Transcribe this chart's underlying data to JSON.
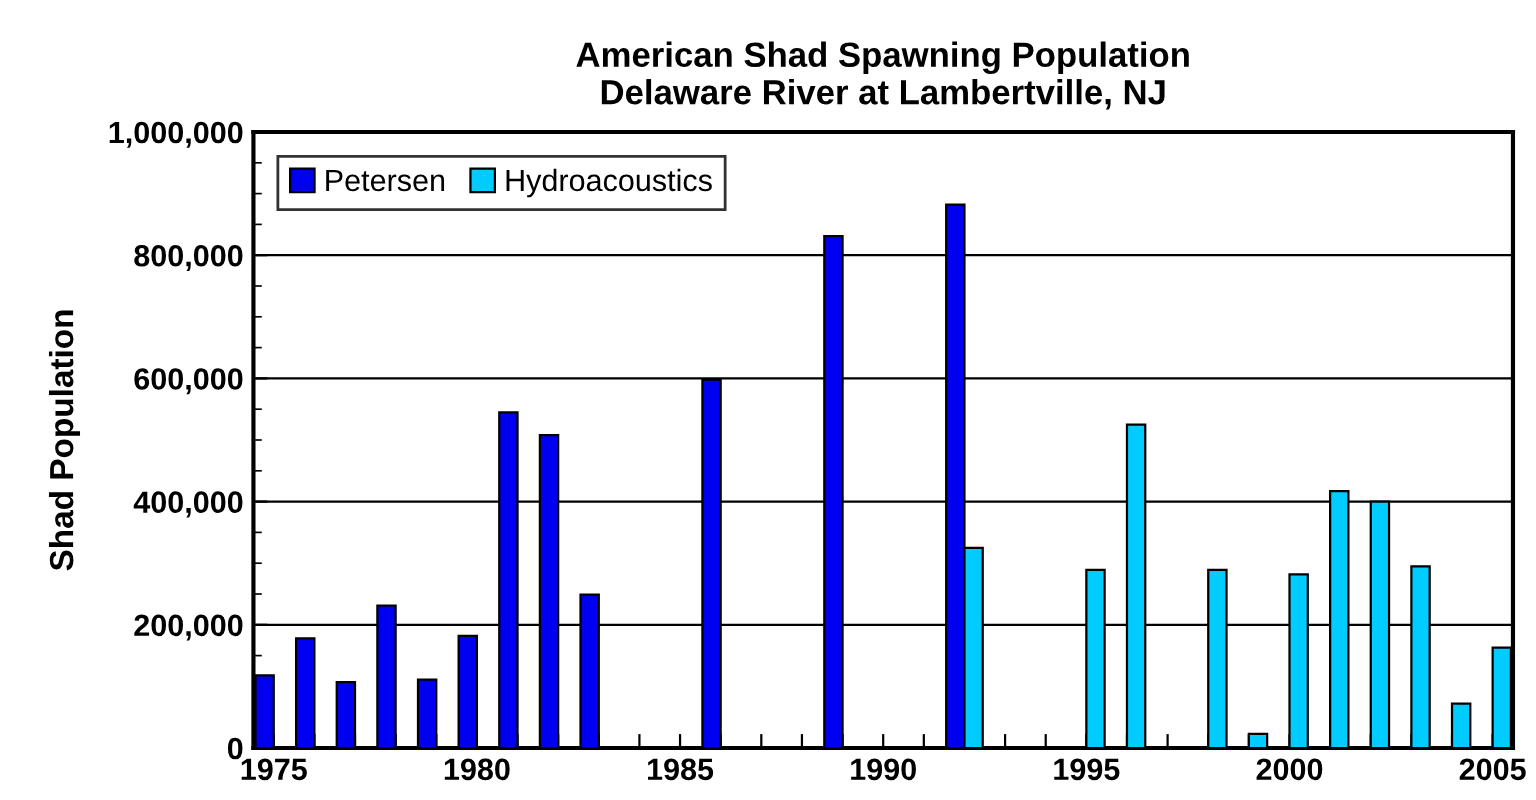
{
  "chart_data": {
    "type": "bar",
    "title": "American Shad Spawning Population\nDelaware River at Lambertville, NJ",
    "ylabel": "Shad Population",
    "categories": [
      "1975",
      null,
      null,
      null,
      null,
      "1980",
      null,
      null,
      null,
      null,
      "1985",
      null,
      null,
      null,
      null,
      "1990",
      null,
      null,
      null,
      null,
      "1995",
      null,
      null,
      null,
      null,
      "2000",
      null,
      null,
      null,
      null,
      "2005"
    ],
    "series": [
      {
        "name": "Petersen",
        "color": "#0000f0",
        "values": [
          118000,
          178000,
          107000,
          231000,
          111000,
          182000,
          545000,
          508000,
          249000,
          null,
          null,
          598000,
          null,
          null,
          831000,
          null,
          null,
          882000,
          null,
          null,
          null,
          null,
          null,
          null,
          null,
          null,
          null,
          null,
          null,
          null,
          null
        ]
      },
      {
        "name": "Hydroacoustics",
        "color": "#00ccff",
        "values": [
          null,
          null,
          null,
          null,
          null,
          null,
          null,
          null,
          null,
          null,
          null,
          null,
          null,
          null,
          null,
          null,
          null,
          325000,
          null,
          null,
          289000,
          525000,
          null,
          289000,
          23000,
          282000,
          417000,
          400000,
          295000,
          72000,
          163000
        ]
      }
    ],
    "ylim": [
      0,
      1000000
    ],
    "yticks": [
      {
        "value": 0,
        "label": "0"
      },
      {
        "value": 200000,
        "label": "200,000"
      },
      {
        "value": 400000,
        "label": "400,000"
      },
      {
        "value": 600000,
        "label": "600,000"
      },
      {
        "value": 800000,
        "label": "800,000"
      },
      {
        "value": 1000000,
        "label": "1,000,000"
      }
    ],
    "grid": "y",
    "legend": "top left"
  }
}
